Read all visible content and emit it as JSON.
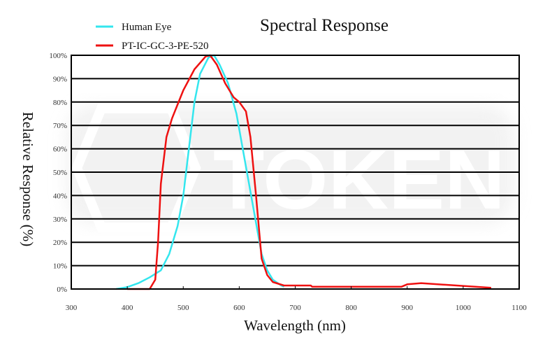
{
  "chart_data": {
    "type": "line",
    "title": "Spectral Response",
    "xlabel": "Wavelength (nm)",
    "ylabel": "Relative Response (%)",
    "xlim": [
      300,
      1100
    ],
    "ylim": [
      0,
      100
    ],
    "xticks": [
      "300",
      "400",
      "500",
      "600",
      "700",
      "800",
      "900",
      "1000",
      "1100"
    ],
    "yticks": [
      "0%",
      "10%",
      "20%",
      "30%",
      "40%",
      "50%",
      "60%",
      "70%",
      "80%",
      "90%",
      "100%"
    ],
    "grid": "horizontal",
    "legend_position": "top-left",
    "series": [
      {
        "name": "Human Eye",
        "color": "#33e6ee",
        "x": [
          380,
          400,
          420,
          440,
          460,
          475,
          490,
          500,
          510,
          520,
          530,
          545,
          555,
          565,
          580,
          595,
          610,
          625,
          640,
          650,
          660,
          675,
          680
        ],
        "y": [
          0,
          0.8,
          2.5,
          5,
          8,
          15,
          27,
          40,
          60,
          80,
          92,
          99,
          100,
          96,
          88,
          75,
          55,
          35,
          15,
          8,
          4,
          1.5,
          1
        ]
      },
      {
        "name": "PT-IC-GC-3-PE-520",
        "color": "#ee1111",
        "x": [
          400,
          440,
          450,
          455,
          460,
          470,
          480,
          500,
          520,
          540,
          548,
          560,
          575,
          590,
          600,
          612,
          620,
          630,
          640,
          650,
          660,
          680,
          728,
          730,
          890,
          900,
          925,
          1050
        ],
        "y": [
          0,
          0,
          4,
          20,
          45,
          65,
          73,
          85,
          94,
          99.5,
          100,
          96,
          88,
          82,
          80,
          76,
          65,
          40,
          13,
          6,
          3,
          1.5,
          1.5,
          1,
          1,
          2,
          2.5,
          0.5
        ]
      }
    ],
    "watermark": "TOKEN"
  }
}
